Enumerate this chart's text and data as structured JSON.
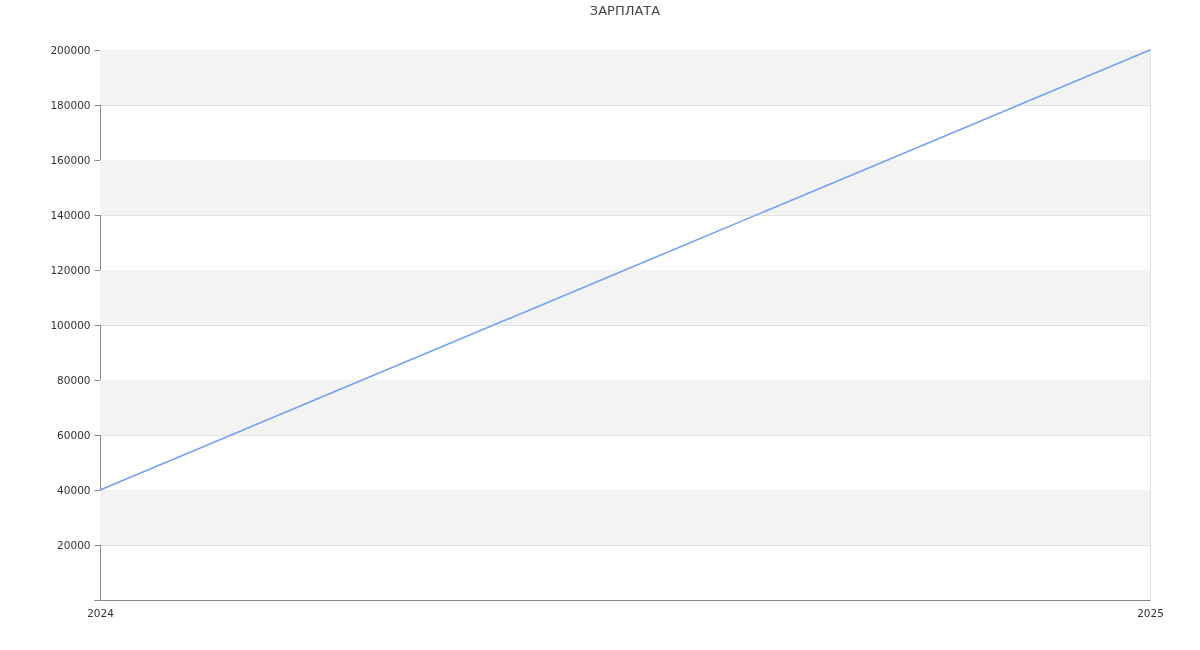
{
  "chart_data": {
    "type": "line",
    "title": "ЗАРПЛАТА",
    "x": [
      2024,
      2025
    ],
    "values": [
      40000,
      200000
    ],
    "color": "#73a0fa",
    "xlim": [
      2024,
      2025
    ],
    "xticks": [
      2024,
      2025
    ],
    "ylim": [
      0,
      200000
    ],
    "yticks": [
      {
        "value": 0,
        "label": null
      },
      20000,
      40000,
      60000,
      80000,
      100000,
      120000,
      140000,
      160000,
      180000,
      200000
    ],
    "grid": true
  }
}
